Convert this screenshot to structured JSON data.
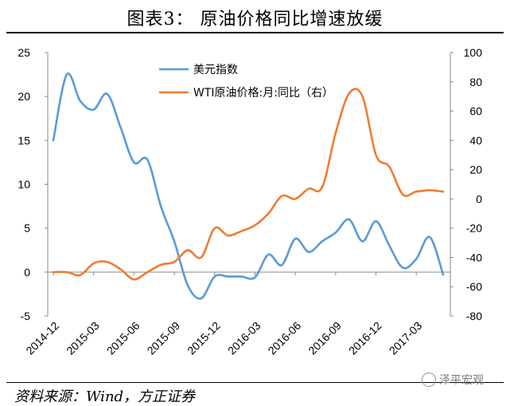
{
  "title": "图表3：  原油价格同比增速放缓",
  "source": "资料来源：Wind，方正证券",
  "watermark": "泽平宏观",
  "chart_data": {
    "type": "line",
    "x": [
      "2014-12",
      "2015-01",
      "2015-02",
      "2015-03",
      "2015-04",
      "2015-05",
      "2015-06",
      "2015-07",
      "2015-08",
      "2015-09",
      "2015-10",
      "2015-11",
      "2015-12",
      "2016-01",
      "2016-02",
      "2016-03",
      "2016-04",
      "2016-05",
      "2016-06",
      "2016-07",
      "2016-08",
      "2016-09",
      "2016-10",
      "2016-11",
      "2016-12",
      "2017-01",
      "2017-02",
      "2017-03",
      "2017-04",
      "2017-05"
    ],
    "x_tick_labels": [
      "2014-12",
      "2015-03",
      "2015-06",
      "2015-09",
      "2015-12",
      "2016-03",
      "2016-06",
      "2016-09",
      "2016-12",
      "2017-03"
    ],
    "y_left": {
      "range": [
        -5,
        25
      ],
      "ticks": [
        "-5",
        "0",
        "5",
        "10",
        "15",
        "20",
        "25"
      ]
    },
    "y_right": {
      "range": [
        -80,
        100
      ],
      "ticks": [
        "-80",
        "-60",
        "-40",
        "-20",
        "0",
        "20",
        "40",
        "60",
        "80",
        "100"
      ]
    },
    "series": [
      {
        "name": "美元指数",
        "axis": "left",
        "color": "#5b9bd5",
        "values": [
          15.0,
          22.5,
          19.5,
          18.5,
          20.3,
          16.5,
          12.5,
          12.8,
          7.5,
          3.5,
          -1.5,
          -3.0,
          -0.5,
          -0.5,
          -0.5,
          -0.6,
          2.0,
          0.8,
          3.8,
          2.3,
          3.5,
          4.5,
          6.0,
          3.5,
          5.8,
          3.0,
          0.5,
          1.5,
          4.0,
          -0.3
        ]
      },
      {
        "name": "WTI原油价格:月:同比（右）",
        "axis": "right",
        "color": "#ed7d31",
        "values": [
          -50,
          -50,
          -52,
          -44,
          -43,
          -48,
          -55,
          -50,
          -45,
          -43,
          -35,
          -40,
          -20,
          -25,
          -22,
          -18,
          -10,
          2,
          0,
          7,
          8,
          45,
          72,
          70,
          30,
          22,
          3,
          5,
          6,
          5
        ]
      }
    ],
    "legend_position": "top-center",
    "grid": false
  }
}
